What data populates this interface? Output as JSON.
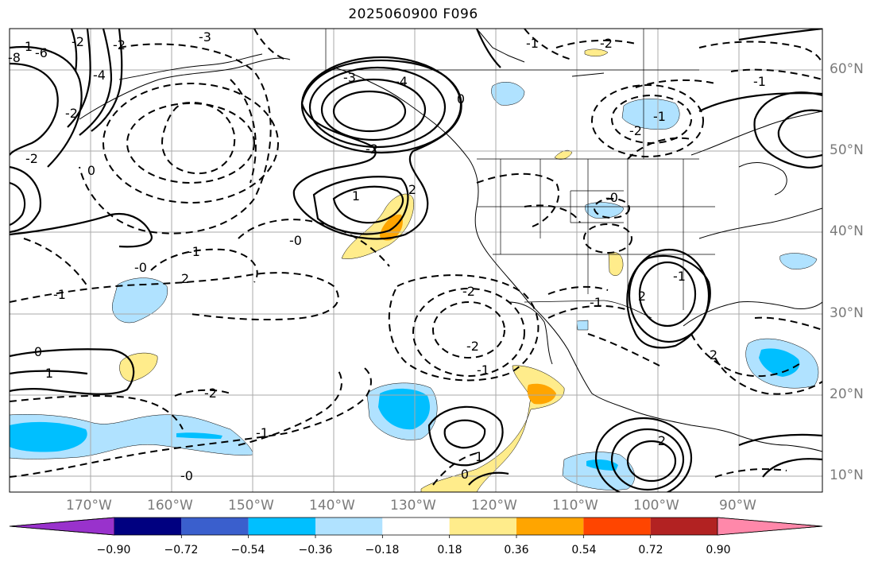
{
  "title": "2025060900 F096",
  "lat_labels": [
    "60°N",
    "50°N",
    "40°N",
    "30°N",
    "20°N",
    "10°N"
  ],
  "lon_labels": [
    "170°W",
    "160°W",
    "150°W",
    "140°W",
    "130°W",
    "120°W",
    "110°W",
    "100°W",
    "90°W"
  ],
  "colorbar": {
    "colors": [
      "#9932cc",
      "#000080",
      "#3a5fcd",
      "#00bfff",
      "#b0e2ff",
      "#ffffff",
      "#ffec8b",
      "#ffa500",
      "#ff4500",
      "#b22222",
      "#ff88aa"
    ],
    "labels": [
      "−0.90",
      "−0.72",
      "−0.54",
      "−0.36",
      "−0.18",
      "0.18",
      "0.36",
      "0.54",
      "0.72",
      "0.90"
    ]
  },
  "contour_labels": [
    {
      "text": "-8"
    },
    {
      "text": "-6"
    },
    {
      "text": "-2"
    },
    {
      "text": "-2"
    },
    {
      "text": "-3"
    },
    {
      "text": "-4"
    },
    {
      "text": "0"
    },
    {
      "text": "-3"
    },
    {
      "text": "-4"
    },
    {
      "text": "-2"
    },
    {
      "text": "0"
    },
    {
      "text": "-1"
    },
    {
      "text": "-2"
    },
    {
      "text": "-1"
    },
    {
      "text": "1"
    },
    {
      "text": "2"
    },
    {
      "text": "-0"
    },
    {
      "text": "-1"
    },
    {
      "text": "-0"
    },
    {
      "text": "-1"
    },
    {
      "text": "2"
    },
    {
      "text": "0"
    },
    {
      "text": "1"
    },
    {
      "text": "-2"
    },
    {
      "text": "-2"
    },
    {
      "text": "-1"
    },
    {
      "text": "-1"
    },
    {
      "text": "2"
    },
    {
      "text": "0"
    },
    {
      "text": "1"
    },
    {
      "text": "2"
    },
    {
      "text": "-2"
    },
    {
      "text": "-1"
    },
    {
      "text": "-0"
    },
    {
      "text": "-2"
    },
    {
      "text": "-1"
    },
    {
      "text": "-0"
    },
    {
      "text": "-1"
    },
    {
      "text": "2"
    },
    {
      "text": "-2"
    },
    {
      "text": "1"
    },
    {
      "text": "-2"
    }
  ]
}
